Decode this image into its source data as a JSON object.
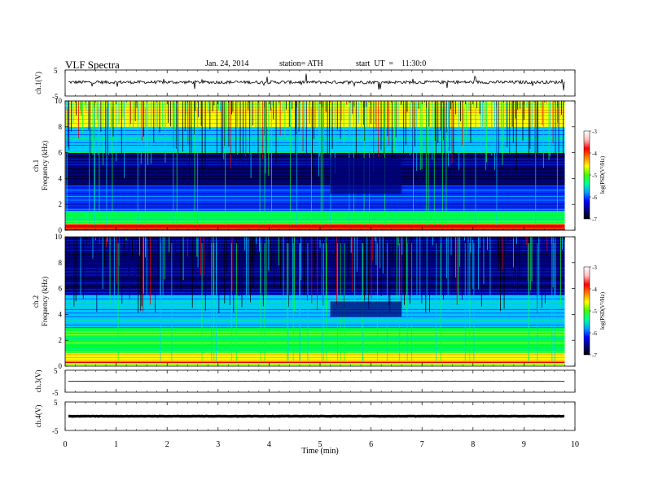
{
  "header": {
    "title": "VLF  Spectra",
    "date": "Jan. 24, 2014",
    "station": "station= ATH",
    "start": "start  UT  =    11:30:0"
  },
  "colorbar_label": "log(PSD(V²/Hz)",
  "colors": {
    "black": "#000000",
    "navy": "#00007a",
    "blue": "#0030ff",
    "cyan": "#00c8ff",
    "green": "#00ff40",
    "yellow": "#ffff00",
    "orange": "#ff8000",
    "red": "#e00000"
  },
  "chart_data": [
    {
      "type": "line",
      "panel": "ch1-waveform",
      "ylabel": "ch.1(V)",
      "ylim": [
        -5,
        5
      ],
      "yticks": [
        "5",
        "-5"
      ],
      "baseline": 0.3,
      "note": "noisy waveform with sporadic spikes"
    },
    {
      "type": "heatmap",
      "panel": "ch1-spectrogram",
      "ylabel_top": "ch.1",
      "ylabel": "Frequency  (kHz)",
      "ylim": [
        0,
        10
      ],
      "yticks": [
        "0",
        "2",
        "4",
        "6",
        "8",
        "10"
      ],
      "colorbar": {
        "range": [
          -7,
          -3
        ],
        "ticks": [
          "-3",
          "-4",
          "-5",
          "-6",
          "-7"
        ],
        "label": "log(PSD(V²/Hz)"
      },
      "bands": [
        {
          "from": 0.0,
          "to": 0.5,
          "level": "red"
        },
        {
          "from": 0.5,
          "to": 1.5,
          "level": "green"
        },
        {
          "from": 1.5,
          "to": 3.5,
          "level": "blue"
        },
        {
          "from": 3.5,
          "to": 6.0,
          "level": "navy"
        },
        {
          "from": 6.0,
          "to": 8.0,
          "level": "cyan"
        },
        {
          "from": 8.0,
          "to": 10.0,
          "level": "yellow"
        }
      ],
      "quiet_region": {
        "t_from": 5.2,
        "t_to": 6.6,
        "f_from": 2.8,
        "f_to": 5.6
      }
    },
    {
      "type": "heatmap",
      "panel": "ch2-spectrogram",
      "ylabel_top": "ch.2",
      "ylabel": "Frequency  (kHz)",
      "ylim": [
        0,
        10
      ],
      "yticks": [
        "0",
        "2",
        "4",
        "6",
        "8",
        "10"
      ],
      "colorbar": {
        "range": [
          -7,
          -3
        ],
        "ticks": [
          "-3",
          "-4",
          "-5",
          "-6",
          "-7"
        ],
        "label": "log(PSD(V²/Hz)"
      },
      "bands": [
        {
          "from": 0.0,
          "to": 1.0,
          "level": "yellow"
        },
        {
          "from": 1.0,
          "to": 3.0,
          "level": "green"
        },
        {
          "from": 3.0,
          "to": 5.5,
          "level": "cyan"
        },
        {
          "from": 5.5,
          "to": 10.0,
          "level": "navy"
        }
      ],
      "quiet_region": {
        "t_from": 5.2,
        "t_to": 6.6,
        "f_from": 3.8,
        "f_to": 5.0
      }
    },
    {
      "type": "line",
      "panel": "ch3-waveform",
      "ylabel": "ch.3(V)",
      "ylim": [
        -5,
        5
      ],
      "yticks": [
        "5",
        "-5"
      ],
      "baseline": 0.0
    },
    {
      "type": "line",
      "panel": "ch4-waveform",
      "ylabel": "ch.4(V)",
      "ylim": [
        -5,
        5
      ],
      "yticks": [
        "5",
        "-5"
      ],
      "baseline": 0.0
    }
  ],
  "xaxis": {
    "label": "Time  (min)",
    "xlim": [
      0,
      10
    ],
    "ticks": [
      "0",
      "1",
      "2",
      "3",
      "4",
      "5",
      "6",
      "7",
      "8",
      "9",
      "10"
    ],
    "data_end": 9.8
  }
}
